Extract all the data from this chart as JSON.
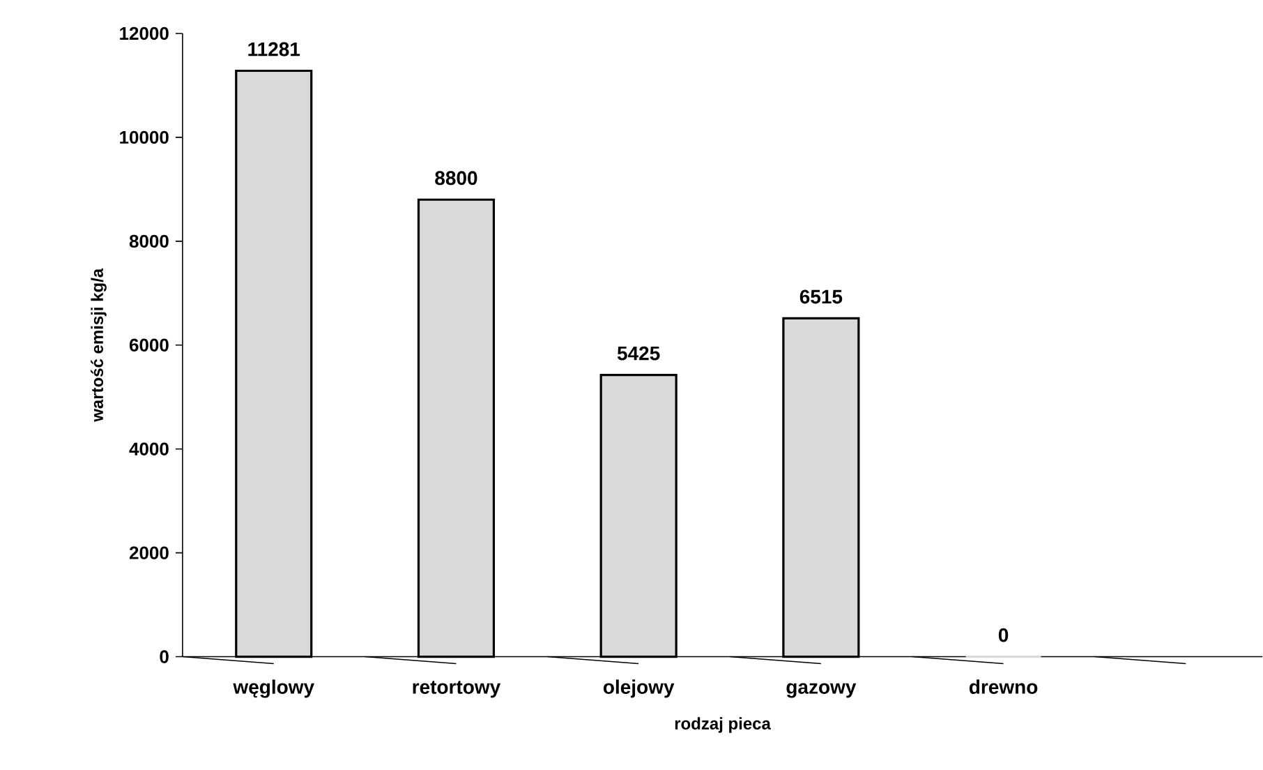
{
  "chart_data": {
    "type": "bar",
    "xlabel": "rodzaj pieca",
    "ylabel": "wartość emisji kg/a",
    "categories": [
      "węglowy",
      "retortowy",
      "olejowy",
      "gazowy",
      "drewno",
      null
    ],
    "values": [
      11281,
      8800,
      5425,
      6515,
      0,
      null
    ],
    "color": "#d9d9d9",
    "ylim": [
      0,
      12000
    ],
    "yticks": [
      0,
      2000,
      4000,
      6000,
      8000,
      10000,
      12000
    ],
    "data_labels": true,
    "grid": false
  }
}
